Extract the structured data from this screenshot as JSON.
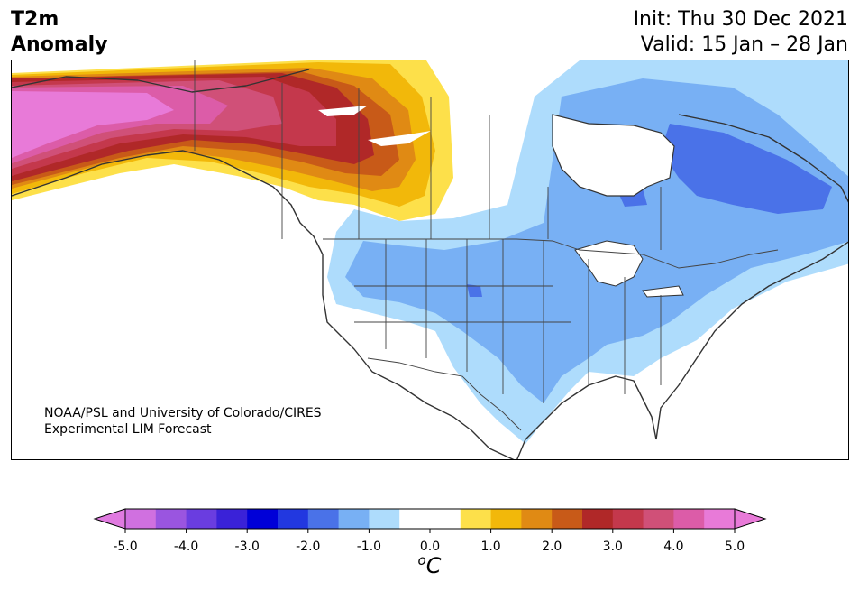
{
  "title": {
    "variable": "T2m",
    "kind": "Anomaly",
    "init": "Init: Thu 30 Dec 2021",
    "valid": "Valid: 15 Jan – 28 Jan"
  },
  "credit": {
    "line1": "NOAA/PSL and University of Colorado/CIRES",
    "line2": "Experimental LIM Forecast"
  },
  "colorbar": {
    "unit_base": "C",
    "unit_sup": "o",
    "range": [
      -5.0,
      5.0
    ],
    "extend": "both",
    "ticks": [
      "-5.0",
      "-4.0",
      "-3.0",
      "-2.0",
      "-1.0",
      "0.0",
      "1.0",
      "2.0",
      "3.0",
      "4.0",
      "5.0"
    ],
    "low_extend_color": "#e07ae0",
    "high_extend_color": "#e87ad8",
    "bins": [
      {
        "from": -5.0,
        "to": -4.5,
        "color": "#d070e0"
      },
      {
        "from": -4.5,
        "to": -4.0,
        "color": "#9a55e0"
      },
      {
        "from": -4.0,
        "to": -3.5,
        "color": "#6a3de0"
      },
      {
        "from": -3.5,
        "to": -3.0,
        "color": "#3a22d8"
      },
      {
        "from": -3.0,
        "to": -2.5,
        "color": "#0000d8"
      },
      {
        "from": -2.5,
        "to": -2.0,
        "color": "#2238e0"
      },
      {
        "from": -2.0,
        "to": -1.5,
        "color": "#4a72e8"
      },
      {
        "from": -1.5,
        "to": -1.0,
        "color": "#78b0f4"
      },
      {
        "from": -1.0,
        "to": -0.5,
        "color": "#aedcfc"
      },
      {
        "from": -0.5,
        "to": 0.0,
        "color": "#ffffff"
      },
      {
        "from": 0.0,
        "to": 0.5,
        "color": "#ffffff"
      },
      {
        "from": 0.5,
        "to": 1.0,
        "color": "#fde04a"
      },
      {
        "from": 1.0,
        "to": 1.5,
        "color": "#f2b80a"
      },
      {
        "from": 1.5,
        "to": 2.0,
        "color": "#e08a14"
      },
      {
        "from": 2.0,
        "to": 2.5,
        "color": "#c85a18"
      },
      {
        "from": 2.5,
        "to": 3.0,
        "color": "#b02828"
      },
      {
        "from": 3.0,
        "to": 3.5,
        "color": "#c4384c"
      },
      {
        "from": 3.5,
        "to": 4.0,
        "color": "#d05078"
      },
      {
        "from": 4.0,
        "to": 4.5,
        "color": "#dc5ca8"
      },
      {
        "from": 4.5,
        "to": 5.0,
        "color": "#e87ad8"
      }
    ]
  },
  "colors": {
    "coast": "#333333",
    "border": "#444444"
  }
}
